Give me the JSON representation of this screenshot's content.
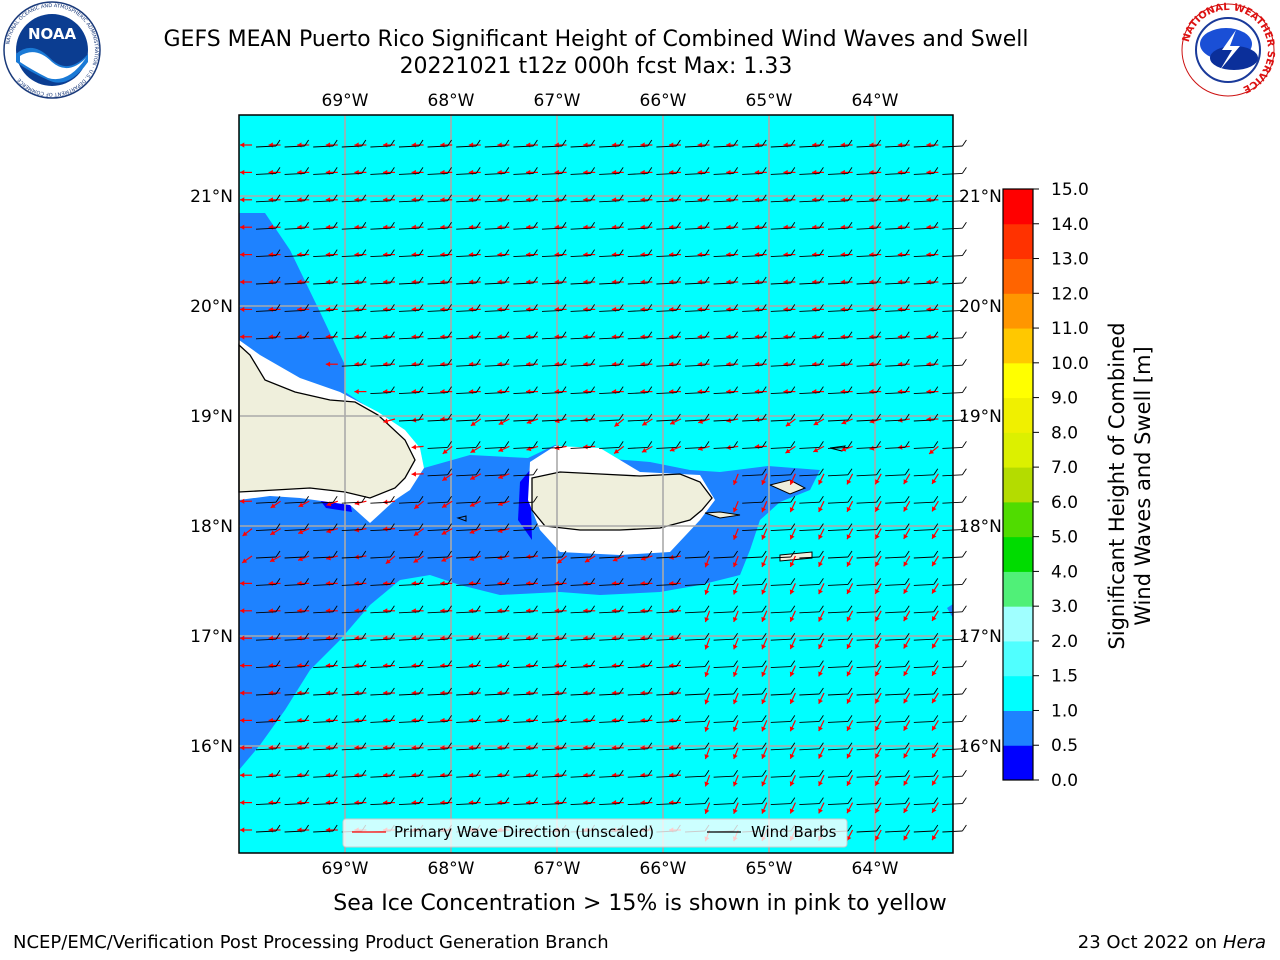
{
  "header": {
    "title_line1": "GEFS MEAN Puerto Rico Significant Height of Combined Wind Waves and Swell",
    "title_line2": "20221021 t12z 000h fcst   Max: 1.33"
  },
  "logos": {
    "left": "NOAA",
    "left_ring": "NATIONAL OCEANIC AND ATMOSPHERIC ADMINISTRATION · U.S. DEPARTMENT OF COMMERCE",
    "right_ring": "NATIONAL WEATHER SERVICE"
  },
  "map": {
    "lon_labels": [
      "69°W",
      "68°W",
      "67°W",
      "66°W",
      "65°W",
      "64°W"
    ],
    "lat_labels": [
      "21°N",
      "20°N",
      "19°N",
      "18°N",
      "17°N",
      "16°N"
    ],
    "lon_values": [
      -69,
      -68,
      -67,
      -66,
      -65,
      -64
    ],
    "lat_values": [
      21,
      20,
      19,
      18,
      17,
      16
    ],
    "lon_range": [
      -70,
      -63.25
    ],
    "lat_range": [
      15,
      21.75
    ],
    "legend": {
      "wave_label": "Primary Wave Direction (unscaled)",
      "barb_label": "Wind Barbs",
      "wave_color": "#ff0000",
      "barb_color": "#000000"
    }
  },
  "colorbar": {
    "label_line1": "Significant Height of Combined",
    "label_line2": "Wind Waves and Swell [m]",
    "ticks": [
      "0.0",
      "0.5",
      "1.0",
      "1.5",
      "2.0",
      "3.0",
      "4.0",
      "5.0",
      "6.0",
      "7.0",
      "8.0",
      "9.0",
      "10.0",
      "11.0",
      "12.0",
      "13.0",
      "14.0",
      "15.0"
    ],
    "colors": [
      "#0000ff",
      "#1e82ff",
      "#00ffff",
      "#50ffff",
      "#a0ffff",
      "#50f078",
      "#00dc00",
      "#50dc00",
      "#b4dc00",
      "#dcf000",
      "#f0f000",
      "#ffff00",
      "#ffc800",
      "#ff9600",
      "#ff6400",
      "#ff3200",
      "#ff0000"
    ]
  },
  "note": "Sea Ice Concentration > 15% is shown in pink to yellow",
  "footer": {
    "left": "NCEP/EMC/Verification Post Processing Product Generation Branch",
    "right_prefix": "23 Oct 2022 on ",
    "right_host": "Hera"
  }
}
